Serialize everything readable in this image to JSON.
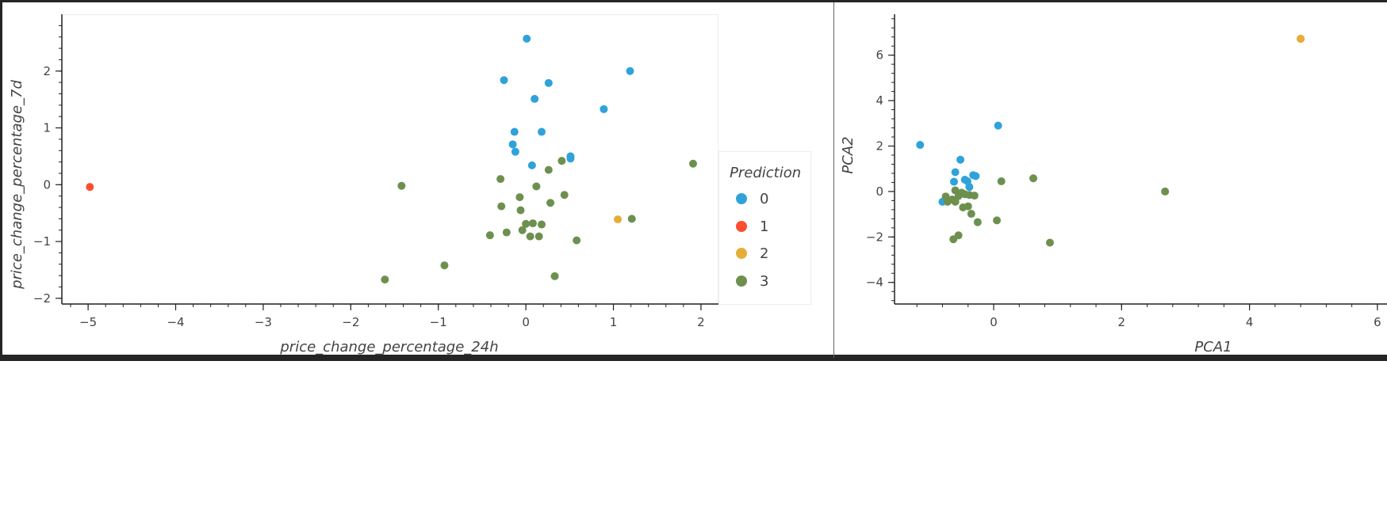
{
  "colors": {
    "0": "#30a2da",
    "1": "#fc4f30",
    "2": "#e5ae38",
    "3": "#6d904f"
  },
  "legend": {
    "title": "Prediction",
    "entries": [
      "0",
      "1",
      "2",
      "3"
    ]
  },
  "chart_data": [
    {
      "type": "scatter",
      "title": "",
      "xlabel": "price_change_percentage_24h",
      "ylabel": "price_change_percentage_7d",
      "xlim": [
        -5.3,
        2.2
      ],
      "ylim": [
        -2.1,
        3.0
      ],
      "xticks": [
        -5,
        -4,
        -3,
        -2,
        -1,
        0,
        1,
        2
      ],
      "yticks": [
        -2,
        -1,
        0,
        1,
        2
      ],
      "grid": false,
      "legend_position": "right",
      "series": [
        {
          "name": "0",
          "points": [
            [
              0.01,
              2.57
            ],
            [
              -0.25,
              1.84
            ],
            [
              0.26,
              1.79
            ],
            [
              1.19,
              2.0
            ],
            [
              0.1,
              1.51
            ],
            [
              0.89,
              1.33
            ],
            [
              -0.13,
              0.93
            ],
            [
              0.18,
              0.93
            ],
            [
              -0.15,
              0.71
            ],
            [
              -0.12,
              0.58
            ],
            [
              0.51,
              0.5
            ],
            [
              0.51,
              0.46
            ],
            [
              0.07,
              0.34
            ]
          ]
        },
        {
          "name": "1",
          "points": [
            [
              -4.98,
              -0.04
            ]
          ]
        },
        {
          "name": "2",
          "points": [
            [
              1.05,
              -0.61
            ]
          ]
        },
        {
          "name": "3",
          "points": [
            [
              1.91,
              0.37
            ],
            [
              0.41,
              0.42
            ],
            [
              0.26,
              0.26
            ],
            [
              -0.29,
              0.1
            ],
            [
              0.12,
              -0.03
            ],
            [
              -1.42,
              -0.02
            ],
            [
              0.44,
              -0.18
            ],
            [
              -0.07,
              -0.22
            ],
            [
              0.28,
              -0.32
            ],
            [
              -0.28,
              -0.38
            ],
            [
              -0.06,
              -0.45
            ],
            [
              1.21,
              -0.6
            ],
            [
              0.0,
              -0.69
            ],
            [
              0.08,
              -0.68
            ],
            [
              0.18,
              -0.7
            ],
            [
              -0.04,
              -0.8
            ],
            [
              -0.22,
              -0.84
            ],
            [
              -0.41,
              -0.89
            ],
            [
              0.05,
              -0.91
            ],
            [
              0.15,
              -0.91
            ],
            [
              0.58,
              -0.98
            ],
            [
              -0.93,
              -1.42
            ],
            [
              0.33,
              -1.61
            ],
            [
              -1.61,
              -1.67
            ]
          ]
        }
      ]
    },
    {
      "type": "scatter",
      "title": "",
      "xlabel": "PCA1",
      "ylabel": "PCA2",
      "xlim": [
        -1.55,
        6.15
      ],
      "ylim": [
        -4.95,
        7.8
      ],
      "xticks": [
        0,
        2,
        4,
        6
      ],
      "yticks": [
        -4,
        -2,
        0,
        2,
        4,
        6
      ],
      "grid": false,
      "series": [
        {
          "name": "0",
          "points": [
            [
              -1.15,
              2.05
            ],
            [
              0.07,
              2.9
            ],
            [
              -0.52,
              1.4
            ],
            [
              -0.6,
              0.85
            ],
            [
              -0.32,
              0.72
            ],
            [
              -0.28,
              0.68
            ],
            [
              -0.45,
              0.52
            ],
            [
              -0.41,
              0.45
            ],
            [
              -0.62,
              0.43
            ],
            [
              -0.38,
              0.2
            ],
            [
              -0.8,
              -0.45
            ]
          ]
        },
        {
          "name": "1",
          "points": [
            [
              4.8,
              6.72
            ]
          ]
        },
        {
          "name": "2",
          "points": [
            [
              4.8,
              6.72
            ]
          ]
        },
        {
          "name": "3",
          "points": [
            [
              -0.6,
              0.05
            ],
            [
              -0.5,
              -0.05
            ],
            [
              -0.45,
              -0.12
            ],
            [
              -0.38,
              -0.15
            ],
            [
              -0.3,
              -0.18
            ],
            [
              -0.55,
              -0.2
            ],
            [
              -0.75,
              -0.22
            ],
            [
              -0.65,
              -0.35
            ],
            [
              -0.72,
              -0.45
            ],
            [
              -0.6,
              -0.45
            ],
            [
              -0.48,
              -0.7
            ],
            [
              -0.4,
              -0.65
            ],
            [
              -0.35,
              -0.98
            ],
            [
              -0.25,
              -1.35
            ],
            [
              0.05,
              -1.27
            ],
            [
              -0.55,
              -1.93
            ],
            [
              -0.63,
              -2.1
            ],
            [
              0.88,
              -2.25
            ],
            [
              0.12,
              0.45
            ],
            [
              0.62,
              0.58
            ],
            [
              2.68,
              0.0
            ]
          ]
        }
      ]
    }
  ]
}
